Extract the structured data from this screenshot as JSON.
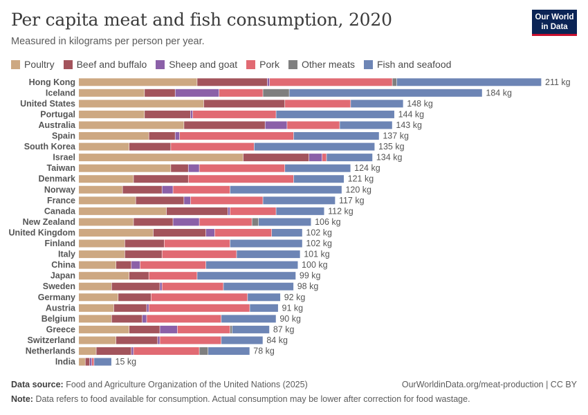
{
  "header": {
    "title": "Per capita meat and fish consumption, 2020",
    "subtitle": "Measured in kilograms per person per year.",
    "logo_line1": "Our World",
    "logo_line2": "in Data"
  },
  "colors": {
    "Poultry": "#cda882",
    "Beef and buffalo": "#a3545c",
    "Sheep and goat": "#8b60a8",
    "Pork": "#e16a73",
    "Other meats": "#7f7f7f",
    "Fish and seafood": "#6d85b5"
  },
  "chart_data": {
    "type": "bar",
    "orientation": "horizontal",
    "stacked": true,
    "unit_suffix": " kg",
    "title": "Per capita meat and fish consumption, 2020",
    "subtitle": "Measured in kilograms per person per year.",
    "legend_position": "top",
    "grid": false,
    "xlim": [
      0,
      211
    ],
    "categories": [
      "Hong Kong",
      "Iceland",
      "United States",
      "Portugal",
      "Australia",
      "Spain",
      "South Korea",
      "Israel",
      "Taiwan",
      "Denmark",
      "Norway",
      "France",
      "Canada",
      "New Zealand",
      "United Kingdom",
      "Finland",
      "Italy",
      "China",
      "Japan",
      "Sweden",
      "Germany",
      "Austria",
      "Belgium",
      "Greece",
      "Switzerland",
      "Netherlands",
      "India"
    ],
    "totals": [
      "211 kg",
      "184 kg",
      "148 kg",
      "144 kg",
      "143 kg",
      "137 kg",
      "135 kg",
      "134 kg",
      "124 kg",
      "121 kg",
      "120 kg",
      "117 kg",
      "112 kg",
      "106 kg",
      "102 kg",
      "102 kg",
      "101 kg",
      "100 kg",
      "99 kg",
      "98 kg",
      "92 kg",
      "91 kg",
      "90 kg",
      "87 kg",
      "84 kg",
      "78 kg",
      "15 kg"
    ],
    "series": [
      {
        "name": "Poultry",
        "values": [
          54,
          30,
          57,
          30,
          48,
          32,
          23,
          75,
          42,
          25,
          20,
          26,
          40,
          25,
          34,
          21,
          21,
          17,
          23,
          15,
          18,
          16,
          15,
          23,
          17,
          8,
          3
        ]
      },
      {
        "name": "Beef and buffalo",
        "values": [
          32,
          14,
          37,
          21,
          37,
          12,
          19,
          30,
          8,
          25,
          18,
          22,
          28,
          18,
          24,
          18,
          17,
          7,
          9,
          22,
          15,
          15,
          14,
          14,
          19,
          16,
          2
        ]
      },
      {
        "name": "Sheep and goat",
        "values": [
          1,
          20,
          0,
          1,
          10,
          2,
          0,
          6,
          5,
          0,
          5,
          3,
          1,
          12,
          4,
          0,
          0,
          4,
          0,
          1,
          0,
          1,
          2,
          8,
          1,
          1,
          1
        ]
      },
      {
        "name": "Pork",
        "values": [
          56,
          20,
          30,
          38,
          24,
          52,
          38,
          2,
          39,
          48,
          26,
          33,
          21,
          24,
          26,
          30,
          34,
          30,
          22,
          28,
          44,
          46,
          34,
          24,
          28,
          30,
          1
        ]
      },
      {
        "name": "Other meats",
        "values": [
          2,
          12,
          0,
          0,
          0,
          0,
          0,
          0,
          0,
          0,
          0,
          0,
          0,
          3,
          0,
          0,
          0,
          0,
          0,
          0,
          0,
          0,
          0,
          1,
          0,
          4,
          0
        ]
      },
      {
        "name": "Fish and seafood",
        "values": [
          66,
          88,
          24,
          54,
          24,
          39,
          55,
          21,
          30,
          23,
          51,
          33,
          22,
          24,
          14,
          33,
          29,
          42,
          45,
          32,
          15,
          13,
          25,
          17,
          19,
          19,
          8
        ]
      }
    ]
  },
  "footer": {
    "source_label": "Data source:",
    "source_text": "Food and Agriculture Organization of the United Nations (2025)",
    "url_text": "OurWorldinData.org/meat-production | CC BY",
    "note_label": "Note:",
    "note_text": "Data refers to food available for consumption. Actual consumption may be lower after correction for food wastage."
  }
}
